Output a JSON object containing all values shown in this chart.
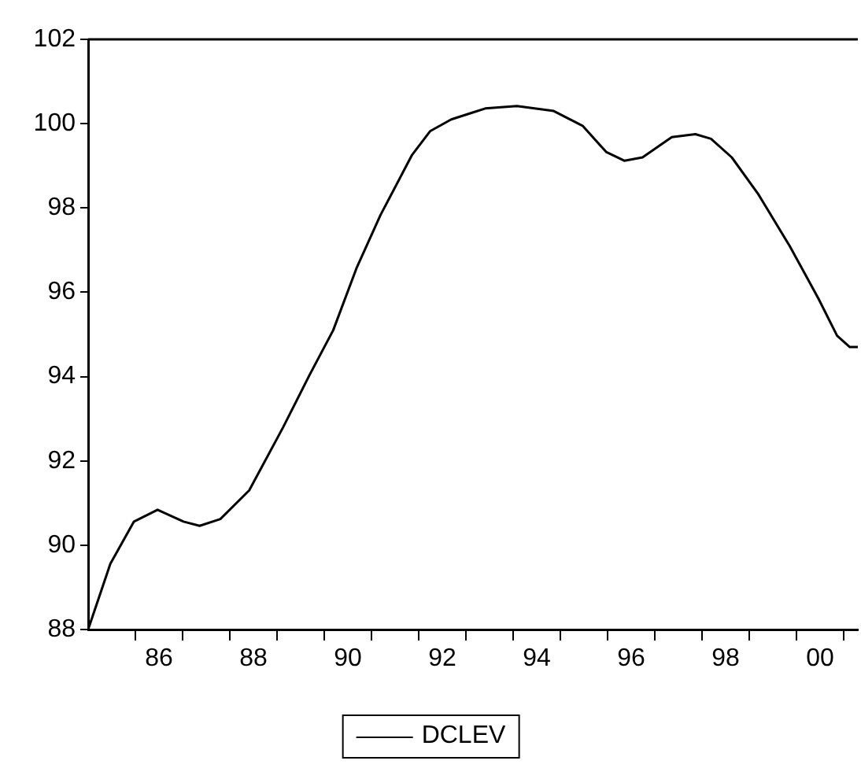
{
  "chart_data": {
    "type": "line",
    "x": [
      1984.5,
      1984.97,
      1985.47,
      1985.97,
      1986.52,
      1986.86,
      1987.3,
      1987.91,
      1988.63,
      1989.19,
      1989.69,
      1990.19,
      1990.69,
      1991.36,
      1991.74,
      1992.19,
      1992.63,
      1992.91,
      1993.58,
      1994.36,
      1994.97,
      1995.47,
      1995.86,
      1996.24,
      1996.86,
      1997.36,
      1997.69,
      1998.13,
      1998.69,
      1999.36,
      1999.97,
      2000.36,
      2000.63,
      2000.8
    ],
    "series": [
      {
        "name": "DCLEV",
        "color": "#000000",
        "values": [
          88.0,
          89.56,
          90.56,
          90.84,
          90.56,
          90.46,
          90.62,
          91.3,
          92.8,
          94.04,
          95.1,
          96.59,
          97.83,
          99.26,
          99.82,
          100.1,
          100.26,
          100.36,
          100.42,
          100.3,
          99.95,
          99.33,
          99.12,
          99.2,
          99.68,
          99.75,
          99.64,
          99.2,
          98.33,
          97.09,
          95.84,
          94.97,
          94.7,
          94.7
        ]
      }
    ],
    "xlim": [
      1984.5,
      2000.8
    ],
    "xticks": [
      {
        "value": 1985.5,
        "label": null
      },
      {
        "value": 1986,
        "label": "86"
      },
      {
        "value": 1986.5,
        "label": null
      },
      {
        "value": 1987.5,
        "label": null
      },
      {
        "value": 1988,
        "label": "88"
      },
      {
        "value": 1988.5,
        "label": null
      },
      {
        "value": 1989.5,
        "label": null
      },
      {
        "value": 1990,
        "label": "90"
      },
      {
        "value": 1990.5,
        "label": null
      },
      {
        "value": 1991.5,
        "label": null
      },
      {
        "value": 1992,
        "label": "92"
      },
      {
        "value": 1992.5,
        "label": null
      },
      {
        "value": 1993.5,
        "label": null
      },
      {
        "value": 1994,
        "label": "94"
      },
      {
        "value": 1994.5,
        "label": null
      },
      {
        "value": 1995.5,
        "label": null
      },
      {
        "value": 1996,
        "label": "96"
      },
      {
        "value": 1996.5,
        "label": null
      },
      {
        "value": 1997.5,
        "label": null
      },
      {
        "value": 1998,
        "label": "98"
      },
      {
        "value": 1998.5,
        "label": null
      },
      {
        "value": 1999.5,
        "label": null
      },
      {
        "value": 2000,
        "label": "00"
      },
      {
        "value": 2000.5,
        "label": null
      }
    ],
    "ylim": [
      88,
      102
    ],
    "yticks": [
      88,
      90,
      92,
      94,
      96,
      98,
      100,
      102
    ],
    "grid": false,
    "legend": "bottom",
    "marker": "none",
    "line_style": "solid"
  }
}
